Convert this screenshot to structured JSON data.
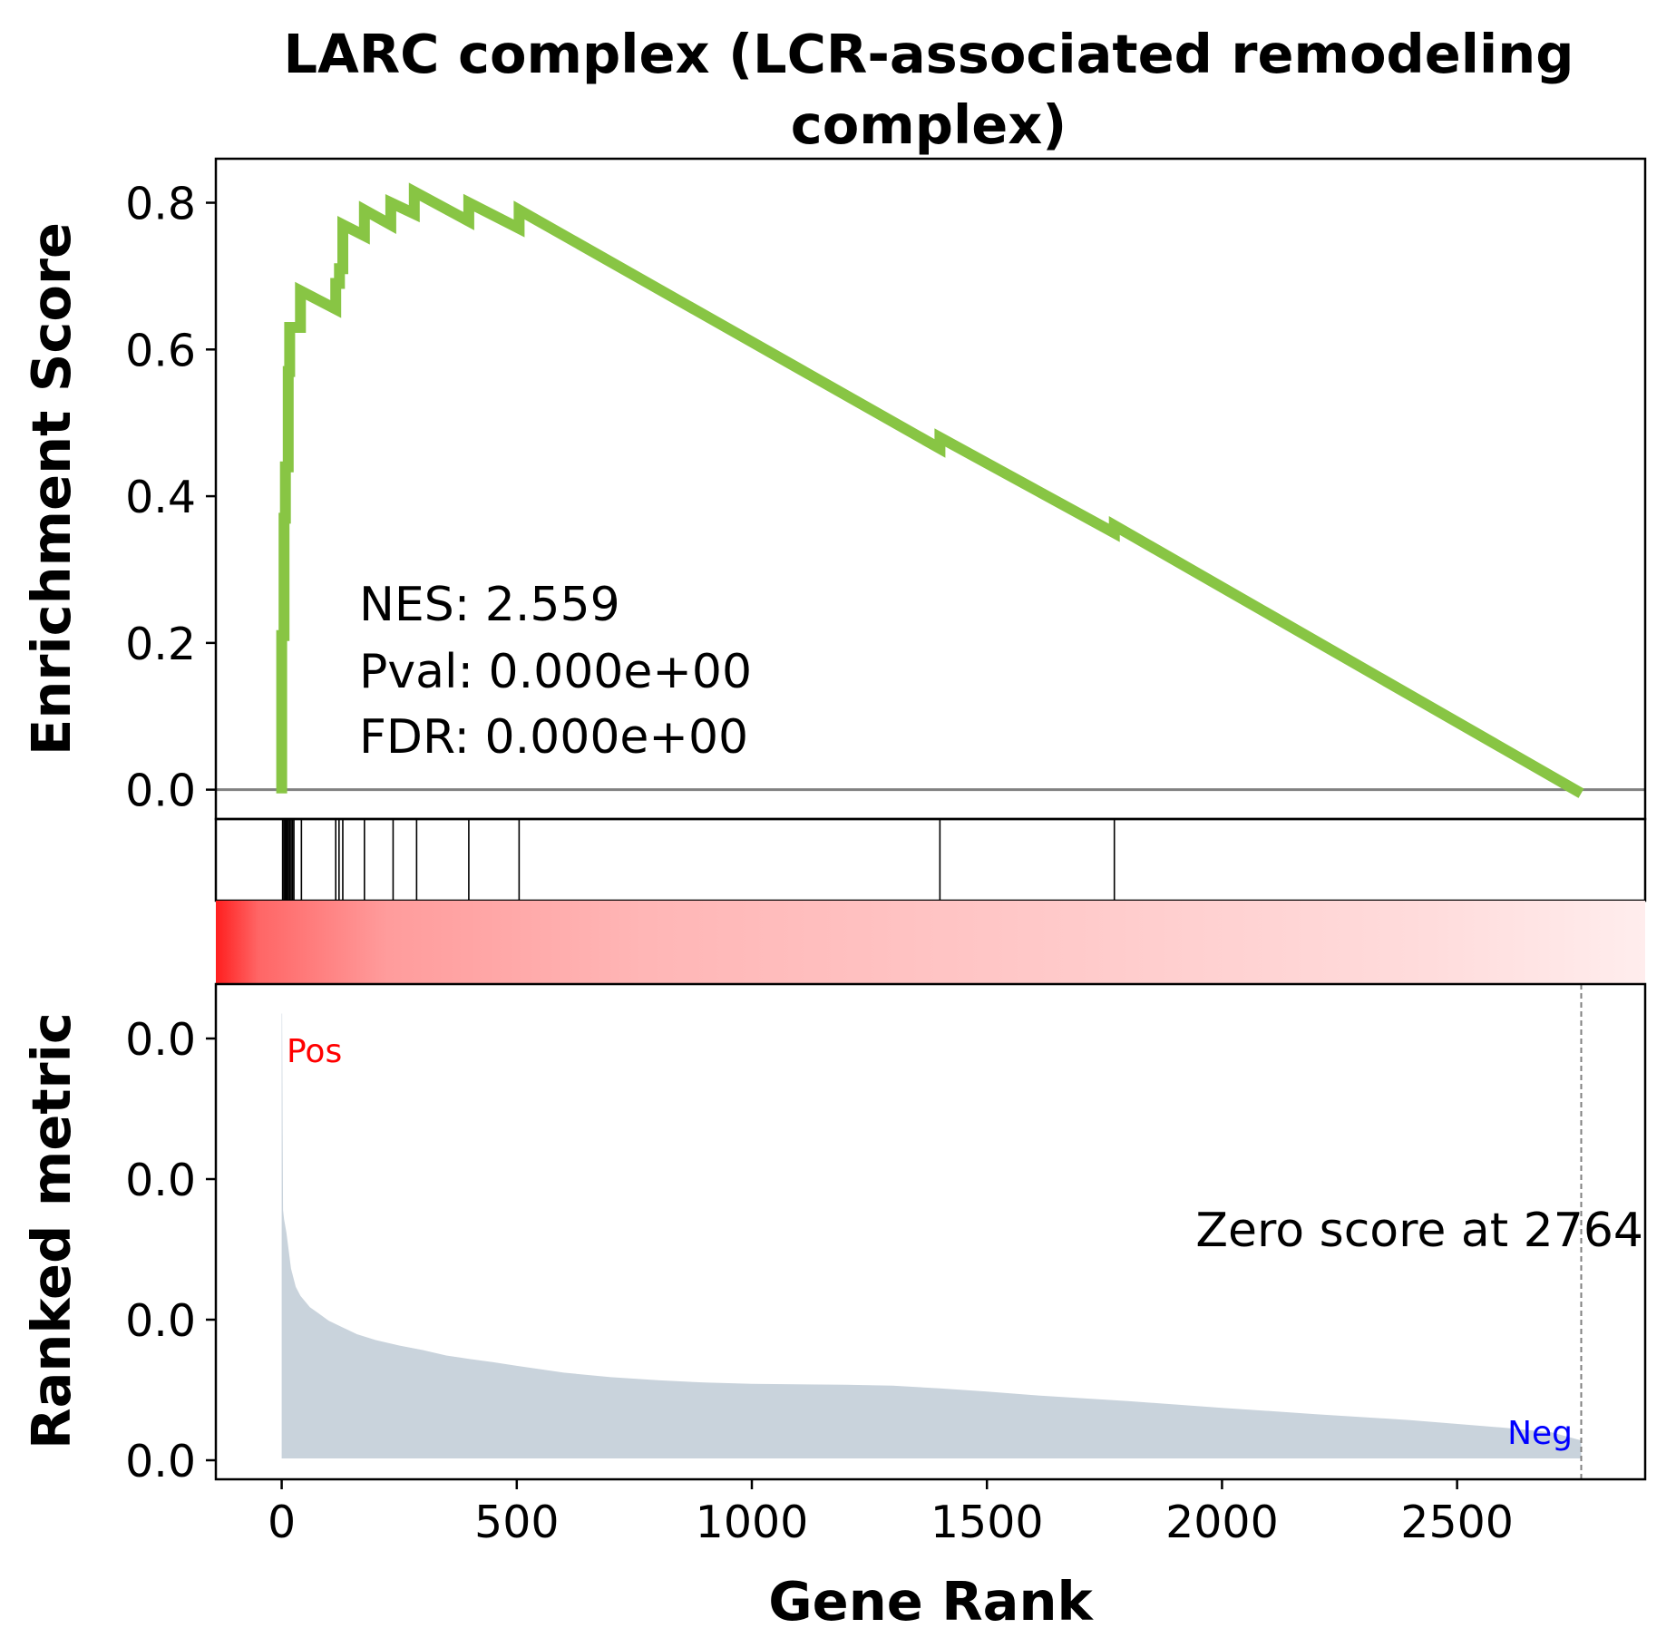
{
  "chart_data": {
    "type": "line",
    "title_line1": "LARC complex (LCR-associated remodeling",
    "title_line2": "complex)",
    "xlabel": "Gene Rank",
    "es_ylabel": "Enrichment Score",
    "metric_ylabel": "Ranked metric",
    "xlim": [
      -140,
      2900
    ],
    "es_ylim": [
      -0.04,
      0.86
    ],
    "x_ticks": [
      0,
      500,
      1000,
      1500,
      2000,
      2500
    ],
    "es_y_ticks": [
      0.0,
      0.2,
      0.4,
      0.6,
      0.8
    ],
    "es_y_tick_labels": [
      "0.0",
      "0.2",
      "0.4",
      "0.6",
      "0.8"
    ],
    "metric_y_tick_labels": [
      "0.0",
      "0.0",
      "0.0",
      "0.0"
    ],
    "stats": {
      "nes": "NES: 2.559",
      "pval": "Pval: 0.000e+00",
      "fdr": "FDR: 0.000e+00"
    },
    "zero_score_label": "Zero score at 2764",
    "zero_score_rank": 2764,
    "pos_label": "Pos",
    "neg_label": "Neg",
    "colors": {
      "es_line": "#88c544",
      "hits": "#000000",
      "metric_fill": "#c9d3dc",
      "pos": "#ff0000",
      "neg": "#0000ff",
      "zero_line": "#808080"
    },
    "hit_ranks": [
      2,
      5,
      8,
      11,
      14,
      17,
      20,
      23,
      26,
      42,
      115,
      122,
      130,
      176,
      237,
      287,
      398,
      505,
      1400,
      1771
    ],
    "es_series": [
      {
        "x": 0,
        "y": -0.005
      },
      {
        "x": 0,
        "y": 0.21
      },
      {
        "x": 5,
        "y": 0.21
      },
      {
        "x": 5,
        "y": 0.37
      },
      {
        "x": 8,
        "y": 0.37
      },
      {
        "x": 8,
        "y": 0.44
      },
      {
        "x": 14,
        "y": 0.44
      },
      {
        "x": 14,
        "y": 0.57
      },
      {
        "x": 17,
        "y": 0.57
      },
      {
        "x": 17,
        "y": 0.63
      },
      {
        "x": 40,
        "y": 0.63
      },
      {
        "x": 40,
        "y": 0.68
      },
      {
        "x": 115,
        "y": 0.655
      },
      {
        "x": 115,
        "y": 0.69
      },
      {
        "x": 123,
        "y": 0.69
      },
      {
        "x": 123,
        "y": 0.71
      },
      {
        "x": 130,
        "y": 0.71
      },
      {
        "x": 130,
        "y": 0.77
      },
      {
        "x": 176,
        "y": 0.755
      },
      {
        "x": 176,
        "y": 0.79
      },
      {
        "x": 232,
        "y": 0.77
      },
      {
        "x": 232,
        "y": 0.8
      },
      {
        "x": 282,
        "y": 0.785
      },
      {
        "x": 282,
        "y": 0.815
      },
      {
        "x": 398,
        "y": 0.775
      },
      {
        "x": 398,
        "y": 0.8
      },
      {
        "x": 505,
        "y": 0.765
      },
      {
        "x": 505,
        "y": 0.79
      },
      {
        "x": 1400,
        "y": 0.465
      },
      {
        "x": 1400,
        "y": 0.48
      },
      {
        "x": 1771,
        "y": 0.35
      },
      {
        "x": 1771,
        "y": 0.36
      },
      {
        "x": 2764,
        "y": -0.005
      }
    ],
    "metric_series": [
      {
        "x": 0,
        "y": 0.985
      },
      {
        "x": 1,
        "y": 0.985
      },
      {
        "x": 2,
        "y": 0.73
      },
      {
        "x": 3,
        "y": 0.55
      },
      {
        "x": 5,
        "y": 0.53
      },
      {
        "x": 10,
        "y": 0.5
      },
      {
        "x": 20,
        "y": 0.42
      },
      {
        "x": 30,
        "y": 0.38
      },
      {
        "x": 40,
        "y": 0.36
      },
      {
        "x": 60,
        "y": 0.335
      },
      {
        "x": 80,
        "y": 0.32
      },
      {
        "x": 100,
        "y": 0.305
      },
      {
        "x": 130,
        "y": 0.29
      },
      {
        "x": 160,
        "y": 0.275
      },
      {
        "x": 200,
        "y": 0.262
      },
      {
        "x": 250,
        "y": 0.25
      },
      {
        "x": 300,
        "y": 0.24
      },
      {
        "x": 350,
        "y": 0.228
      },
      {
        "x": 400,
        "y": 0.22
      },
      {
        "x": 450,
        "y": 0.213
      },
      {
        "x": 500,
        "y": 0.205
      },
      {
        "x": 600,
        "y": 0.19
      },
      {
        "x": 700,
        "y": 0.18
      },
      {
        "x": 800,
        "y": 0.173
      },
      {
        "x": 900,
        "y": 0.168
      },
      {
        "x": 1000,
        "y": 0.165
      },
      {
        "x": 1200,
        "y": 0.163
      },
      {
        "x": 1300,
        "y": 0.161
      },
      {
        "x": 1400,
        "y": 0.155
      },
      {
        "x": 1500,
        "y": 0.148
      },
      {
        "x": 1600,
        "y": 0.14
      },
      {
        "x": 1800,
        "y": 0.127
      },
      {
        "x": 2000,
        "y": 0.112
      },
      {
        "x": 2200,
        "y": 0.098
      },
      {
        "x": 2400,
        "y": 0.085
      },
      {
        "x": 2600,
        "y": 0.068
      },
      {
        "x": 2700,
        "y": 0.058
      },
      {
        "x": 2764,
        "y": 0.04
      }
    ]
  }
}
